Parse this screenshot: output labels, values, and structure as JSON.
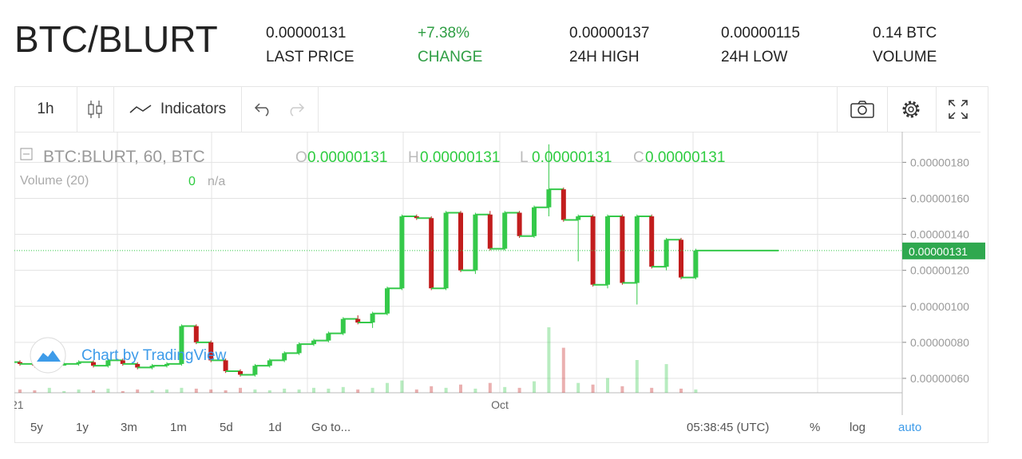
{
  "header": {
    "pair": "BTC/BLURT",
    "stats": [
      {
        "value": "0.00000131",
        "label": "LAST PRICE"
      },
      {
        "value": "+7.38%",
        "label": "CHANGE"
      },
      {
        "value": "0.00000137",
        "label": "24H HIGH"
      },
      {
        "value": "0.00000115",
        "label": "24H LOW"
      },
      {
        "value": "0.14 BTC",
        "label": "VOLUME"
      }
    ]
  },
  "toolbar": {
    "interval": "1h",
    "indicators": "Indicators"
  },
  "legend": {
    "symbol": "BTC:BLURT, 60, BTC",
    "o_label": "O",
    "o": "0.00000131",
    "h_label": "H",
    "h": "0.00000131",
    "l_label": "L",
    "l": "0.00000131",
    "c_label": "C",
    "c": "0.00000131",
    "volume": "Volume (20)",
    "volume_value": "0",
    "volume_na": "n/a"
  },
  "watermark": "Chart by TradingView",
  "chart": {
    "type": "candlestick",
    "ylim": [
      5.2e-07,
      1.97e-06
    ],
    "yticks": [
      {
        "value": 6e-07,
        "label": "0.00000060"
      },
      {
        "value": 8e-07,
        "label": "0.00000080"
      },
      {
        "value": 1e-06,
        "label": "0.00000100"
      },
      {
        "value": 1.2e-06,
        "label": "0.00000120"
      },
      {
        "value": 1.4e-06,
        "label": "0.00000140"
      },
      {
        "value": 1.6e-06,
        "label": "0.00000160"
      },
      {
        "value": 1.8e-06,
        "label": "0.00000180"
      }
    ],
    "x_labels": [
      "21",
      "Oct"
    ],
    "up_color": "#35c94a",
    "down_color": "#c21d1d",
    "candles": [
      [
        6.9e-07,
        7e-07,
        6.7e-07,
        6.8e-07
      ],
      [
        6.8e-07,
        6.9e-07,
        6.6e-07,
        6.7e-07
      ],
      [
        6.7e-07,
        6.9e-07,
        6.6e-07,
        6.8e-07
      ],
      [
        6.8e-07,
        6.9e-07,
        6.7e-07,
        6.8e-07
      ],
      [
        6.8e-07,
        7e-07,
        6.7e-07,
        6.9e-07
      ],
      [
        6.9e-07,
        7e-07,
        6.6e-07,
        6.7e-07
      ],
      [
        6.7e-07,
        7.1e-07,
        6.6e-07,
        7e-07
      ],
      [
        7e-07,
        7.1e-07,
        6.7e-07,
        6.8e-07
      ],
      [
        6.8e-07,
        6.9e-07,
        6.5e-07,
        6.6e-07
      ],
      [
        6.6e-07,
        6.8e-07,
        6.5e-07,
        6.7e-07
      ],
      [
        6.7e-07,
        6.9e-07,
        6.6e-07,
        6.8e-07
      ],
      [
        6.8e-07,
        9e-07,
        6.7e-07,
        8.9e-07
      ],
      [
        8.9e-07,
        9e-07,
        7.9e-07,
        8e-07
      ],
      [
        8e-07,
        8.1e-07,
        6.9e-07,
        7e-07
      ],
      [
        7e-07,
        7.1e-07,
        6.3e-07,
        6.4e-07
      ],
      [
        6.4e-07,
        6.5e-07,
        6.1e-07,
        6.2e-07
      ],
      [
        6.2e-07,
        6.8e-07,
        6.1e-07,
        6.7e-07
      ],
      [
        6.7e-07,
        7.1e-07,
        6.6e-07,
        7e-07
      ],
      [
        7e-07,
        7.5e-07,
        6.9e-07,
        7.4e-07
      ],
      [
        7.4e-07,
        8e-07,
        7.3e-07,
        7.9e-07
      ],
      [
        7.9e-07,
        8.2e-07,
        7.8e-07,
        8.1e-07
      ],
      [
        8.1e-07,
        8.6e-07,
        8e-07,
        8.5e-07
      ],
      [
        8.5e-07,
        9.4e-07,
        8.4e-07,
        9.3e-07
      ],
      [
        9.3e-07,
        9.5e-07,
        9e-07,
        9.1e-07
      ],
      [
        9.1e-07,
        9.7e-07,
        8.8e-07,
        9.6e-07
      ],
      [
        9.6e-07,
        1.11e-06,
        9.5e-07,
        1.1e-06
      ],
      [
        1.1e-06,
        1.51e-06,
        1.09e-06,
        1.5e-06
      ],
      [
        1.5e-06,
        1.51e-06,
        1.48e-06,
        1.49e-06
      ],
      [
        1.49e-06,
        1.5e-06,
        1.09e-06,
        1.1e-06
      ],
      [
        1.1e-06,
        1.53e-06,
        1.09e-06,
        1.52e-06
      ],
      [
        1.52e-06,
        1.53e-06,
        1.19e-06,
        1.2e-06
      ],
      [
        1.2e-06,
        1.52e-06,
        1.18e-06,
        1.51e-06
      ],
      [
        1.51e-06,
        1.53e-06,
        1.31e-06,
        1.32e-06
      ],
      [
        1.32e-06,
        1.53e-06,
        1.31e-06,
        1.52e-06
      ],
      [
        1.52e-06,
        1.53e-06,
        1.38e-06,
        1.39e-06
      ],
      [
        1.39e-06,
        1.56e-06,
        1.38e-06,
        1.55e-06
      ],
      [
        1.55e-06,
        1.9e-06,
        1.5e-06,
        1.65e-06
      ],
      [
        1.65e-06,
        1.66e-06,
        1.47e-06,
        1.48e-06
      ],
      [
        1.48e-06,
        1.51e-06,
        1.25e-06,
        1.5e-06
      ],
      [
        1.5e-06,
        1.51e-06,
        1.11e-06,
        1.12e-06
      ],
      [
        1.12e-06,
        1.51e-06,
        1.1e-06,
        1.5e-06
      ],
      [
        1.5e-06,
        1.51e-06,
        1.12e-06,
        1.13e-06
      ],
      [
        1.13e-06,
        1.51e-06,
        1.01e-06,
        1.5e-06
      ],
      [
        1.5e-06,
        1.51e-06,
        1.21e-06,
        1.22e-06
      ],
      [
        1.22e-06,
        1.38e-06,
        1.2e-06,
        1.37e-06
      ],
      [
        1.37e-06,
        1.38e-06,
        1.15e-06,
        1.16e-06
      ],
      [
        1.16e-06,
        1.32e-06,
        1.15e-06,
        1.31e-06
      ]
    ],
    "volume": [
      0.004,
      0.003,
      0.006,
      0.002,
      0.004,
      0.003,
      0.005,
      0.002,
      0.004,
      0.003,
      0.004,
      0.006,
      0.005,
      0.004,
      0.003,
      0.006,
      0.004,
      0.003,
      0.005,
      0.004,
      0.006,
      0.005,
      0.007,
      0.004,
      0.006,
      0.012,
      0.015,
      0.004,
      0.008,
      0.006,
      0.01,
      0.005,
      0.012,
      0.007,
      0.006,
      0.014,
      0.08,
      0.055,
      0.012,
      0.01,
      0.018,
      0.008,
      0.04,
      0.006,
      0.035,
      0.005,
      0.004
    ]
  },
  "bottom": {
    "ranges": [
      "5y",
      "1y",
      "3m",
      "1m",
      "5d",
      "1d"
    ],
    "goto": "Go to...",
    "time": "05:38:45 (UTC)",
    "percent": "%",
    "log": "log",
    "auto": "auto"
  }
}
